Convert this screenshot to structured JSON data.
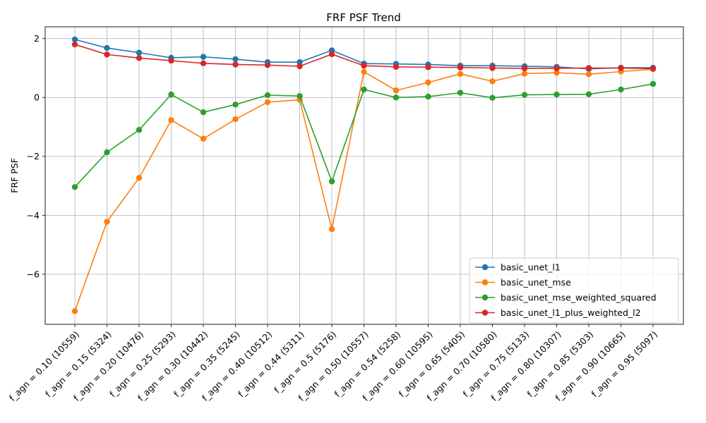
{
  "chart_data": {
    "type": "line",
    "title": "FRF PSF Trend",
    "xlabel": "",
    "ylabel": "FRF PSF",
    "ylim": [
      -7.7,
      2.4
    ],
    "yticks": [
      2,
      0,
      -2,
      -4,
      -6
    ],
    "grid": true,
    "legend_position": "bottom-right",
    "categories": [
      "f_agn = 0.10 (10559)",
      "f_agn = 0.15 (5324)",
      "f_agn = 0.20 (10476)",
      "f_agn = 0.25 (5293)",
      "f_agn = 0.30 (10442)",
      "f_agn = 0.35 (5245)",
      "f_agn = 0.40 (10512)",
      "f_agn = 0.44 (5311)",
      "f_agn = 0.5 (5176)",
      "f_agn = 0.50 (10557)",
      "f_agn = 0.54 (5258)",
      "f_agn = 0.60 (10595)",
      "f_agn = 0.65 (5405)",
      "f_agn = 0.70 (10580)",
      "f_agn = 0.75 (5133)",
      "f_agn = 0.80 (10307)",
      "f_agn = 0.85 (5303)",
      "f_agn = 0.90 (10665)",
      "f_agn = 0.95 (5097)"
    ],
    "series": [
      {
        "name": "basic_unet_l1",
        "color": "#1f77b4",
        "values": [
          1.97,
          1.68,
          1.52,
          1.35,
          1.38,
          1.3,
          1.2,
          1.2,
          1.6,
          1.15,
          1.14,
          1.12,
          1.08,
          1.08,
          1.06,
          1.04,
          0.97,
          1.01,
          1.01
        ]
      },
      {
        "name": "basic_unet_mse",
        "color": "#ff7f0e",
        "values": [
          -7.25,
          -4.22,
          -2.73,
          -0.77,
          -1.4,
          -0.74,
          -0.16,
          -0.08,
          -4.47,
          0.87,
          0.24,
          0.51,
          0.8,
          0.55,
          0.81,
          0.84,
          0.79,
          0.88,
          0.96
        ]
      },
      {
        "name": "basic_unet_mse_weighted_squared",
        "color": "#2ca02c",
        "values": [
          -3.04,
          -1.86,
          -1.1,
          0.1,
          -0.5,
          -0.24,
          0.08,
          0.05,
          -2.85,
          0.27,
          0.0,
          0.03,
          0.16,
          -0.01,
          0.09,
          0.1,
          0.11,
          0.27,
          0.46
        ]
      },
      {
        "name": "basic_unet_l1_plus_weighted_l2",
        "color": "#d62728",
        "values": [
          1.8,
          1.46,
          1.34,
          1.25,
          1.16,
          1.12,
          1.1,
          1.06,
          1.47,
          1.08,
          1.04,
          1.03,
          1.02,
          1.0,
          0.99,
          0.99,
          1.0,
          1.0,
          0.98
        ]
      }
    ]
  }
}
